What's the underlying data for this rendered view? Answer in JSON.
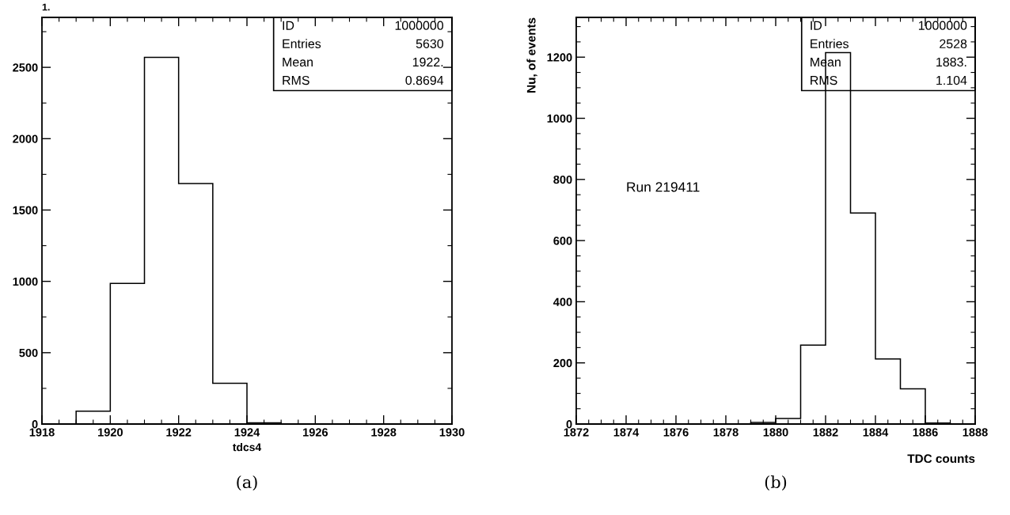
{
  "chart_data": [
    {
      "type": "histogram",
      "xlabel": "tdcs4",
      "bins": [
        1919,
        1920,
        1921,
        1922,
        1923,
        1924,
        1925
      ],
      "values": [
        90,
        985,
        2570,
        1685,
        285,
        8
      ],
      "color": "#000000",
      "xlim": [
        1918,
        1930
      ],
      "xticks": [
        1918,
        1920,
        1922,
        1924,
        1926,
        1928,
        1930
      ],
      "ylim": [
        0,
        2850
      ],
      "yticks": [
        0,
        500,
        1000,
        1500,
        2000,
        2500
      ],
      "grid": false,
      "legend": false,
      "annotations": [
        "1.",
        "ID",
        "1000000",
        "Entries",
        "5630",
        "Mean",
        "1922.",
        "RMS",
        "0.8694",
        "(a)"
      ]
    },
    {
      "type": "histogram",
      "xlabel": "TDC counts",
      "ylabel": "Nu, of events",
      "bins": [
        1879,
        1880,
        1881,
        1882,
        1883,
        1884,
        1885,
        1886,
        1887
      ],
      "values": [
        5,
        18,
        258,
        1215,
        690,
        213,
        115,
        3
      ],
      "color": "#000000",
      "xlim": [
        1872,
        1888
      ],
      "xticks": [
        1872,
        1874,
        1876,
        1878,
        1880,
        1882,
        1884,
        1886,
        1888
      ],
      "ylim": [
        0,
        1330
      ],
      "yticks": [
        0,
        200,
        400,
        600,
        800,
        1000,
        1200
      ],
      "grid": false,
      "legend": false,
      "annotations": [
        "ID",
        "1000000",
        "Entries",
        "2528",
        "Mean",
        "1883.",
        "RMS",
        "1.104",
        "Run 219411",
        "(b)"
      ]
    }
  ]
}
